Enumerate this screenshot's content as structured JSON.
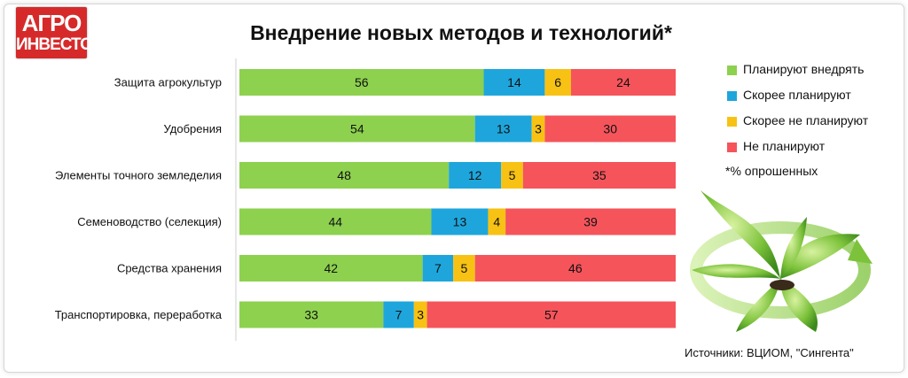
{
  "logo": {
    "line1": "АГРО",
    "line2": "ИНВЕСТОР"
  },
  "chart_data": {
    "type": "bar",
    "orientation": "horizontal",
    "stacked": true,
    "title": "Внедрение новых методов и технологий*",
    "categories": [
      "Защита агрокультур",
      "Удобрения",
      "Элементы точного земледелия",
      "Семеноводство (селекция)",
      "Средства хранения",
      "Транспортировка, переработка"
    ],
    "series": [
      {
        "name": "Планируют внедрять",
        "color": "#8dd14f",
        "values": [
          56,
          54,
          48,
          44,
          42,
          33
        ]
      },
      {
        "name": "Скорее планируют",
        "color": "#1ea6dc",
        "values": [
          14,
          13,
          12,
          13,
          7,
          7
        ]
      },
      {
        "name": "Скорее не планируют",
        "color": "#f7c214",
        "values": [
          6,
          3,
          5,
          4,
          5,
          3
        ]
      },
      {
        "name": "Не планируют",
        "color": "#f5545b",
        "values": [
          24,
          30,
          35,
          39,
          46,
          57
        ]
      }
    ],
    "xlim": [
      0,
      100
    ],
    "grid": false,
    "legend_position": "right",
    "note": "*% опрошенных",
    "source": "Источники: ВЦИОМ, \"Сингента\""
  }
}
